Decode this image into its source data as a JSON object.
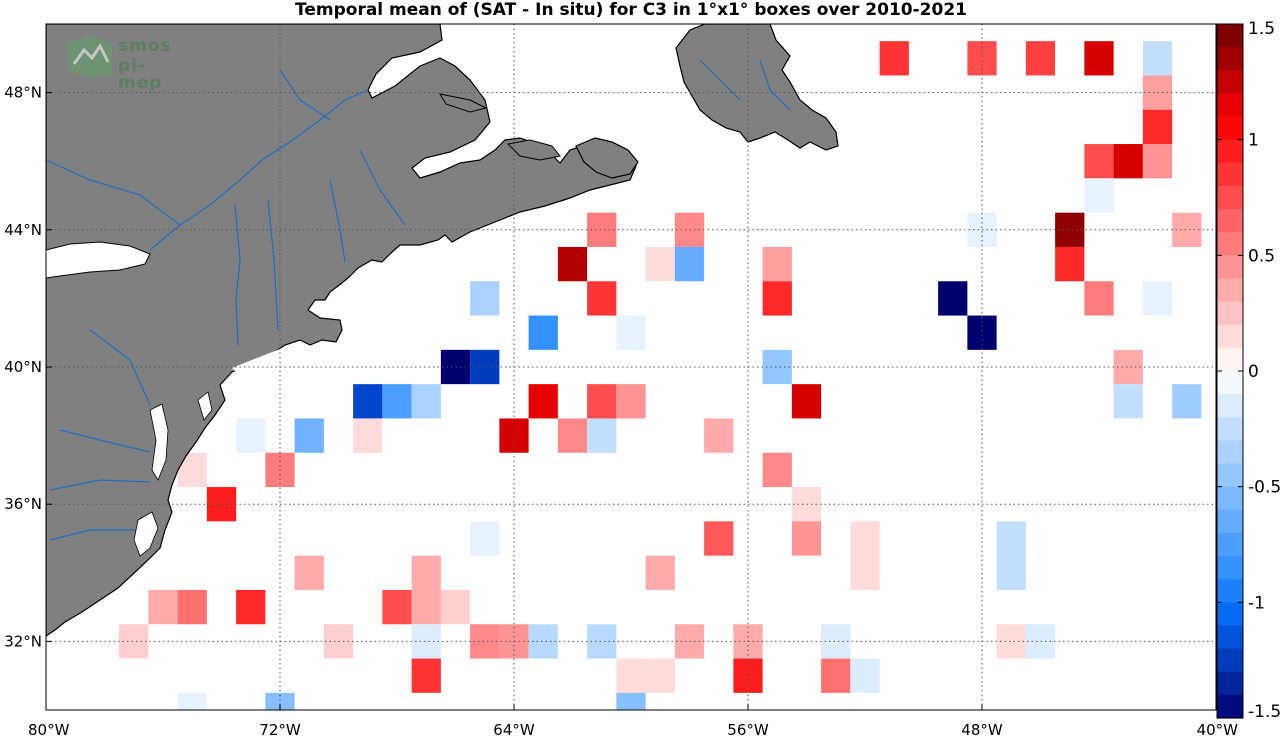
{
  "title": "Temporal mean of (SAT - In situ) for C3 in 1°x1° boxes over 2010-2021",
  "logo": {
    "line1": "smos",
    "line2": "pi-mep"
  },
  "colors": {
    "land": "#808080",
    "coast": "#000000",
    "river": "#1f6fc4",
    "grid": "#555555"
  },
  "chart_data": {
    "type": "heatmap",
    "title": "Temporal mean of (SAT - In situ) for C3 in 1°x1° boxes over 2010-2021",
    "x_range": [
      -80,
      -40
    ],
    "y_range": [
      30,
      50
    ],
    "x_ticks": [
      {
        "value": -80,
        "label": "80°W"
      },
      {
        "value": -72,
        "label": "72°W"
      },
      {
        "value": -64,
        "label": "64°W"
      },
      {
        "value": -56,
        "label": "56°W"
      },
      {
        "value": -48,
        "label": "48°W"
      },
      {
        "value": -40,
        "label": "40°W"
      }
    ],
    "y_ticks": [
      {
        "value": 32,
        "label": "32°N"
      },
      {
        "value": 36,
        "label": "36°N"
      },
      {
        "value": 40,
        "label": "40°N"
      },
      {
        "value": 44,
        "label": "44°N"
      },
      {
        "value": 48,
        "label": "48°N"
      }
    ],
    "colorbar": {
      "min": -1.5,
      "max": 1.5,
      "levels": 30,
      "ticks": [
        {
          "value": 1.5,
          "label": "1.5"
        },
        {
          "value": 1,
          "label": "1"
        },
        {
          "value": 0.5,
          "label": "0.5"
        },
        {
          "value": 0,
          "label": "0"
        },
        {
          "value": -0.5,
          "label": "-0.5"
        },
        {
          "value": -1,
          "label": "-1"
        },
        {
          "value": -1.5,
          "label": "-1.5"
        }
      ]
    },
    "cells": [
      {
        "lon": -51,
        "lat": 49,
        "v": 0.85
      },
      {
        "lon": -48,
        "lat": 49,
        "v": 0.75
      },
      {
        "lon": -46,
        "lat": 49,
        "v": 0.8
      },
      {
        "lon": -44,
        "lat": 49,
        "v": 1.2
      },
      {
        "lon": -42,
        "lat": 49,
        "v": -0.25
      },
      {
        "lon": -42,
        "lat": 48,
        "v": 0.4
      },
      {
        "lon": -42,
        "lat": 47,
        "v": 0.9
      },
      {
        "lon": -44,
        "lat": 46,
        "v": 0.75
      },
      {
        "lon": -43,
        "lat": 46,
        "v": 1.2
      },
      {
        "lon": -42,
        "lat": 46,
        "v": 0.45
      },
      {
        "lon": -44,
        "lat": 45,
        "v": -0.1
      },
      {
        "lon": -61,
        "lat": 44,
        "v": 0.55
      },
      {
        "lon": -58,
        "lat": 44,
        "v": 0.5
      },
      {
        "lon": -48,
        "lat": 44,
        "v": -0.1
      },
      {
        "lon": -45,
        "lat": 44,
        "v": 1.4
      },
      {
        "lon": -41,
        "lat": 44,
        "v": 0.35
      },
      {
        "lon": -62,
        "lat": 43,
        "v": 1.3
      },
      {
        "lon": -59,
        "lat": 43,
        "v": 0.15
      },
      {
        "lon": -58,
        "lat": 43,
        "v": -0.65
      },
      {
        "lon": -55,
        "lat": 43,
        "v": 0.4
      },
      {
        "lon": -45,
        "lat": 43,
        "v": 0.9
      },
      {
        "lon": -65,
        "lat": 42,
        "v": -0.35
      },
      {
        "lon": -61,
        "lat": 42,
        "v": 0.85
      },
      {
        "lon": -55,
        "lat": 42,
        "v": 0.9
      },
      {
        "lon": -49,
        "lat": 42,
        "v": -1.5
      },
      {
        "lon": -44,
        "lat": 42,
        "v": 0.55
      },
      {
        "lon": -42,
        "lat": 42,
        "v": -0.1
      },
      {
        "lon": -63,
        "lat": 41,
        "v": -0.85
      },
      {
        "lon": -60,
        "lat": 41,
        "v": -0.1
      },
      {
        "lon": -48,
        "lat": 41,
        "v": -1.5
      },
      {
        "lon": -66,
        "lat": 40,
        "v": -1.5
      },
      {
        "lon": -65,
        "lat": 40,
        "v": -1.25
      },
      {
        "lon": -55,
        "lat": 40,
        "v": -0.45
      },
      {
        "lon": -43,
        "lat": 40,
        "v": 0.35
      },
      {
        "lon": -69,
        "lat": 39,
        "v": -1.2
      },
      {
        "lon": -68,
        "lat": 39,
        "v": -0.75
      },
      {
        "lon": -67,
        "lat": 39,
        "v": -0.35
      },
      {
        "lon": -63,
        "lat": 39,
        "v": 1.15
      },
      {
        "lon": -61,
        "lat": 39,
        "v": 0.75
      },
      {
        "lon": -60,
        "lat": 39,
        "v": 0.45
      },
      {
        "lon": -54,
        "lat": 39,
        "v": 1.2
      },
      {
        "lon": -43,
        "lat": 39,
        "v": -0.25
      },
      {
        "lon": -41,
        "lat": 39,
        "v": -0.4
      },
      {
        "lon": -73,
        "lat": 38,
        "v": -0.1
      },
      {
        "lon": -71,
        "lat": 38,
        "v": -0.6
      },
      {
        "lon": -69,
        "lat": 38,
        "v": 0.15
      },
      {
        "lon": -64,
        "lat": 38,
        "v": 1.2
      },
      {
        "lon": -62,
        "lat": 38,
        "v": 0.5
      },
      {
        "lon": -61,
        "lat": 38,
        "v": -0.25
      },
      {
        "lon": -57,
        "lat": 38,
        "v": 0.35
      },
      {
        "lon": -75,
        "lat": 37,
        "v": 0.15
      },
      {
        "lon": -72,
        "lat": 37,
        "v": 0.55
      },
      {
        "lon": -55,
        "lat": 37,
        "v": 0.5
      },
      {
        "lon": -74,
        "lat": 36,
        "v": 0.95
      },
      {
        "lon": -54,
        "lat": 36,
        "v": 0.15
      },
      {
        "lon": -65,
        "lat": 35,
        "v": -0.1
      },
      {
        "lon": -57,
        "lat": 35,
        "v": 0.7
      },
      {
        "lon": -54,
        "lat": 35,
        "v": 0.45
      },
      {
        "lon": -47,
        "lat": 35,
        "v": -0.25
      },
      {
        "lon": -52,
        "lat": 35,
        "v": 0.15
      },
      {
        "lon": -71,
        "lat": 34,
        "v": 0.35
      },
      {
        "lon": -67,
        "lat": 34,
        "v": 0.35
      },
      {
        "lon": -59,
        "lat": 34,
        "v": 0.35
      },
      {
        "lon": -52,
        "lat": 34,
        "v": 0.15
      },
      {
        "lon": -47,
        "lat": 34,
        "v": -0.25
      },
      {
        "lon": -76,
        "lat": 33,
        "v": 0.35
      },
      {
        "lon": -75,
        "lat": 33,
        "v": 0.6
      },
      {
        "lon": -73,
        "lat": 33,
        "v": 0.9
      },
      {
        "lon": -68,
        "lat": 33,
        "v": 0.75
      },
      {
        "lon": -67,
        "lat": 33,
        "v": 0.35
      },
      {
        "lon": -66,
        "lat": 33,
        "v": 0.2
      },
      {
        "lon": -77,
        "lat": 32,
        "v": 0.2
      },
      {
        "lon": -70,
        "lat": 32,
        "v": 0.2
      },
      {
        "lon": -67,
        "lat": 32,
        "v": -0.15
      },
      {
        "lon": -65,
        "lat": 32,
        "v": 0.5
      },
      {
        "lon": -64,
        "lat": 32,
        "v": 0.45
      },
      {
        "lon": -63,
        "lat": 32,
        "v": -0.3
      },
      {
        "lon": -61,
        "lat": 32,
        "v": -0.3
      },
      {
        "lon": -58,
        "lat": 32,
        "v": 0.35
      },
      {
        "lon": -56,
        "lat": 32,
        "v": 0.35
      },
      {
        "lon": -53,
        "lat": 32,
        "v": -0.15
      },
      {
        "lon": -47,
        "lat": 32,
        "v": 0.15
      },
      {
        "lon": -46,
        "lat": 32,
        "v": -0.15
      },
      {
        "lon": -67,
        "lat": 31,
        "v": 0.85
      },
      {
        "lon": -60,
        "lat": 31,
        "v": 0.15
      },
      {
        "lon": -59,
        "lat": 31,
        "v": 0.15
      },
      {
        "lon": -56,
        "lat": 31,
        "v": 0.95
      },
      {
        "lon": -53,
        "lat": 31,
        "v": 0.6
      },
      {
        "lon": -52,
        "lat": 31,
        "v": -0.15
      },
      {
        "lon": -75,
        "lat": 30,
        "v": -0.1
      },
      {
        "lon": -72,
        "lat": 30,
        "v": -0.5
      },
      {
        "lon": -60,
        "lat": 30,
        "v": -0.5
      }
    ]
  }
}
